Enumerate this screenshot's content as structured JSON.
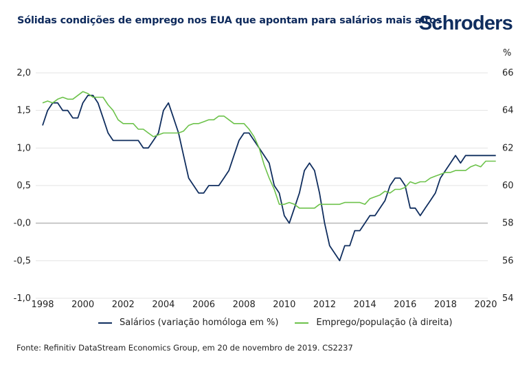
{
  "title": "Sólidas condições de emprego nos EUA que apontam para salários mais altos",
  "logo": "Schroders",
  "right_unit": "%",
  "source": "Fonte: Refinitiv DataStream Economics Group, em 20 de novembro de 2019. CS2237",
  "colors": {
    "salarios": "#0f2d5e",
    "emprego": "#6cc24a",
    "grid": "#e3e3e3",
    "zero": "#bdbdbd"
  },
  "chart_data": {
    "type": "line",
    "title": "Sólidas condições de emprego nos EUA que apontam para salários mais altos",
    "xlabel": "",
    "ylabel": "",
    "y2label": "%",
    "xlim": [
      1998,
      2020.5
    ],
    "ylim": [
      -1.0,
      2.0
    ],
    "y2lim": [
      54,
      66
    ],
    "grid": true,
    "legend_position": "bottom",
    "x_ticks": [
      "1998",
      "2000",
      "2002",
      "2004",
      "2006",
      "2008",
      "2010",
      "2012",
      "2014",
      "2016",
      "2018",
      "2020"
    ],
    "x_tick_values": [
      1998,
      2000,
      2002,
      2004,
      2006,
      2008,
      2010,
      2012,
      2014,
      2016,
      2018,
      2020
    ],
    "y_ticks": [
      "2,0",
      "1,5",
      "1,0",
      "0,5",
      "-0,0",
      "-0,5",
      "-1,0"
    ],
    "y_tick_values": [
      2.0,
      1.5,
      1.0,
      0.5,
      0.0,
      -0.5,
      -1.0
    ],
    "y2_ticks": [
      "66",
      "64",
      "62",
      "60",
      "58",
      "56",
      "54"
    ],
    "y2_tick_values": [
      66,
      64,
      62,
      60,
      58,
      56,
      54
    ],
    "x_start": 1998,
    "x_step": 0.25,
    "series": [
      {
        "name": "Salários (variação homóloga em %)",
        "axis": "left",
        "values": [
          1.3,
          1.5,
          1.6,
          1.6,
          1.5,
          1.5,
          1.4,
          1.4,
          1.6,
          1.7,
          1.7,
          1.6,
          1.4,
          1.2,
          1.1,
          1.1,
          1.1,
          1.1,
          1.1,
          1.1,
          1.0,
          1.0,
          1.1,
          1.2,
          1.5,
          1.6,
          1.4,
          1.2,
          0.9,
          0.6,
          0.5,
          0.4,
          0.4,
          0.5,
          0.5,
          0.5,
          0.6,
          0.7,
          0.9,
          1.1,
          1.2,
          1.2,
          1.1,
          1.0,
          0.9,
          0.8,
          0.5,
          0.4,
          0.1,
          0.0,
          0.2,
          0.4,
          0.7,
          0.8,
          0.7,
          0.4,
          0.0,
          -0.3,
          -0.4,
          -0.5,
          -0.3,
          -0.3,
          -0.1,
          -0.1,
          0.0,
          0.1,
          0.1,
          0.2,
          0.3,
          0.5,
          0.6,
          0.6,
          0.5,
          0.2,
          0.2,
          0.1,
          0.2,
          0.3,
          0.4,
          0.6,
          0.7,
          0.8,
          0.9,
          0.8,
          0.9,
          0.9,
          0.9,
          0.9,
          0.9,
          0.9,
          0.9
        ]
      },
      {
        "name": "Emprego/população (à direita)",
        "axis": "right",
        "values": [
          64.4,
          64.5,
          64.4,
          64.6,
          64.7,
          64.6,
          64.6,
          64.8,
          65.0,
          64.9,
          64.7,
          64.7,
          64.7,
          64.3,
          64.0,
          63.5,
          63.3,
          63.3,
          63.3,
          63.0,
          63.0,
          62.8,
          62.6,
          62.7,
          62.8,
          62.8,
          62.8,
          62.8,
          62.9,
          63.2,
          63.3,
          63.3,
          63.4,
          63.5,
          63.5,
          63.7,
          63.7,
          63.5,
          63.3,
          63.3,
          63.3,
          63.0,
          62.6,
          62.0,
          61.1,
          60.4,
          59.8,
          59.0,
          59.0,
          59.1,
          59.0,
          58.8,
          58.8,
          58.8,
          58.8,
          59.0,
          59.0,
          59.0,
          59.0,
          59.0,
          59.1,
          59.1,
          59.1,
          59.1,
          59.0,
          59.3,
          59.4,
          59.5,
          59.7,
          59.6,
          59.8,
          59.8,
          59.9,
          60.2,
          60.1,
          60.2,
          60.2,
          60.4,
          60.5,
          60.6,
          60.7,
          60.7,
          60.8,
          60.8,
          60.8,
          61.0,
          61.1,
          61.0,
          61.3,
          61.3,
          61.3
        ]
      }
    ]
  }
}
